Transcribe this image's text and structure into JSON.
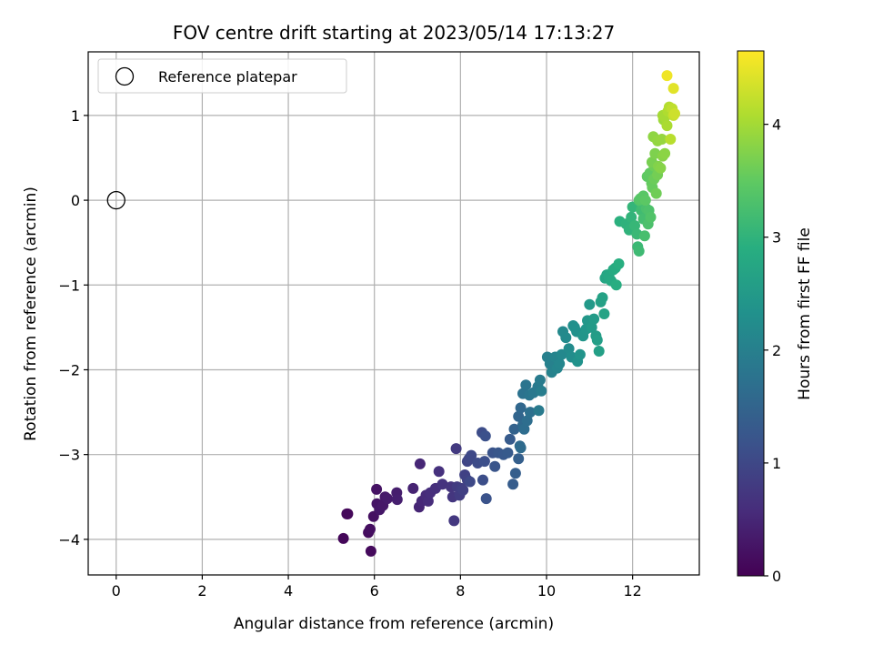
{
  "chart_data": {
    "type": "scatter",
    "title": "FOV centre drift starting at 2023/05/14 17:13:27",
    "xlabel": "Angular distance from reference (arcmin)",
    "ylabel": "Rotation from reference (arcmin)",
    "xlim": [
      -0.65,
      13.55
    ],
    "ylim": [
      -4.42,
      1.75
    ],
    "xticks": [
      0,
      2,
      4,
      6,
      8,
      10,
      12
    ],
    "yticks": [
      -4,
      -3,
      -2,
      -1,
      0,
      1
    ],
    "grid": true,
    "legend": {
      "placement": "top-left",
      "entries": [
        "Reference platepar"
      ]
    },
    "reference_point": {
      "x": 0,
      "y": 0,
      "marker": "open-circle"
    },
    "colorbar": {
      "label": "Hours from first FF file",
      "range": [
        0,
        4.65
      ],
      "ticks": [
        0,
        1,
        2,
        3,
        4
      ],
      "colormap": "viridis"
    },
    "points": [
      [
        5.38,
        -3.7,
        0.05
      ],
      [
        5.28,
        -3.99,
        0.08
      ],
      [
        5.36,
        -3.7,
        0.1
      ],
      [
        5.92,
        -4.14,
        0.12
      ],
      [
        5.86,
        -3.92,
        0.15
      ],
      [
        5.9,
        -3.88,
        0.18
      ],
      [
        5.98,
        -3.73,
        0.2
      ],
      [
        6.05,
        -3.41,
        0.22
      ],
      [
        6.06,
        -3.58,
        0.25
      ],
      [
        6.12,
        -3.65,
        0.28
      ],
      [
        6.2,
        -3.6,
        0.3
      ],
      [
        6.25,
        -3.5,
        0.32
      ],
      [
        6.3,
        -3.52,
        0.35
      ],
      [
        6.52,
        -3.45,
        0.38
      ],
      [
        6.53,
        -3.53,
        0.4
      ],
      [
        6.9,
        -3.4,
        0.45
      ],
      [
        7.04,
        -3.62,
        0.48
      ],
      [
        7.06,
        -3.11,
        0.5
      ],
      [
        7.1,
        -3.55,
        0.52
      ],
      [
        7.2,
        -3.48,
        0.55
      ],
      [
        7.25,
        -3.55,
        0.58
      ],
      [
        7.3,
        -3.45,
        0.6
      ],
      [
        7.42,
        -3.4,
        0.62
      ],
      [
        7.5,
        -3.2,
        0.65
      ],
      [
        7.58,
        -3.35,
        0.68
      ],
      [
        7.78,
        -3.38,
        0.7
      ],
      [
        7.82,
        -3.5,
        0.72
      ],
      [
        7.85,
        -3.78,
        0.75
      ],
      [
        7.9,
        -2.93,
        0.78
      ],
      [
        7.92,
        -3.38,
        0.8
      ],
      [
        7.98,
        -3.48,
        0.82
      ],
      [
        8.02,
        -3.4,
        0.85
      ],
      [
        8.06,
        -3.42,
        0.88
      ],
      [
        8.1,
        -3.24,
        0.9
      ],
      [
        8.16,
        -3.3,
        0.92
      ],
      [
        8.16,
        -3.08,
        0.95
      ],
      [
        8.2,
        -3.05,
        0.98
      ],
      [
        8.25,
        -3.01,
        1.0
      ],
      [
        8.22,
        -3.32,
        1.02
      ],
      [
        8.4,
        -3.1,
        1.05
      ],
      [
        8.5,
        -2.74,
        1.08
      ],
      [
        8.52,
        -3.3,
        1.1
      ],
      [
        8.56,
        -3.08,
        1.12
      ],
      [
        8.58,
        -2.78,
        1.15
      ],
      [
        8.6,
        -3.52,
        1.18
      ],
      [
        8.75,
        -2.98,
        1.2
      ],
      [
        8.8,
        -3.14,
        1.22
      ],
      [
        8.88,
        -2.98,
        1.25
      ],
      [
        9.0,
        -3.0,
        1.28
      ],
      [
        9.1,
        -2.98,
        1.3
      ],
      [
        9.15,
        -2.82,
        1.32
      ],
      [
        9.22,
        -3.35,
        1.35
      ],
      [
        9.28,
        -3.22,
        1.38
      ],
      [
        9.35,
        -3.05,
        1.4
      ],
      [
        9.25,
        -2.7,
        1.45
      ],
      [
        9.35,
        -2.55,
        1.5
      ],
      [
        9.4,
        -2.45,
        1.55
      ],
      [
        9.45,
        -2.65,
        1.58
      ],
      [
        9.38,
        -2.9,
        1.6
      ],
      [
        9.4,
        -2.92,
        1.62
      ],
      [
        9.48,
        -2.7,
        1.65
      ],
      [
        9.55,
        -2.6,
        1.68
      ],
      [
        9.62,
        -2.5,
        1.7
      ],
      [
        9.45,
        -2.28,
        1.75
      ],
      [
        9.52,
        -2.18,
        1.78
      ],
      [
        9.6,
        -2.3,
        1.8
      ],
      [
        9.7,
        -2.27,
        1.85
      ],
      [
        9.8,
        -2.2,
        1.88
      ],
      [
        9.82,
        -2.48,
        1.9
      ],
      [
        9.85,
        -2.12,
        1.92
      ],
      [
        9.88,
        -2.25,
        1.95
      ],
      [
        10.02,
        -1.85,
        2.0
      ],
      [
        10.08,
        -1.93,
        2.02
      ],
      [
        10.12,
        -2.03,
        2.05
      ],
      [
        10.2,
        -1.85,
        2.08
      ],
      [
        10.25,
        -1.98,
        2.1
      ],
      [
        10.3,
        -1.93,
        2.12
      ],
      [
        10.35,
        -1.82,
        2.15
      ],
      [
        10.38,
        -1.55,
        2.18
      ],
      [
        10.45,
        -1.62,
        2.2
      ],
      [
        10.52,
        -1.75,
        2.22
      ],
      [
        10.58,
        -1.85,
        2.25
      ],
      [
        10.62,
        -1.48,
        2.28
      ],
      [
        10.65,
        -1.5,
        2.3
      ],
      [
        10.7,
        -1.55,
        2.32
      ],
      [
        10.72,
        -1.9,
        2.35
      ],
      [
        10.78,
        -1.82,
        2.38
      ],
      [
        10.85,
        -1.6,
        2.4
      ],
      [
        10.92,
        -1.52,
        2.42
      ],
      [
        10.95,
        -1.42,
        2.45
      ],
      [
        11.0,
        -1.23,
        2.48
      ],
      [
        11.05,
        -1.5,
        2.5
      ],
      [
        11.1,
        -1.4,
        2.52
      ],
      [
        11.15,
        -1.6,
        2.55
      ],
      [
        11.18,
        -1.65,
        2.58
      ],
      [
        11.22,
        -1.78,
        2.6
      ],
      [
        11.26,
        -1.2,
        2.62
      ],
      [
        11.3,
        -1.15,
        2.65
      ],
      [
        11.34,
        -1.34,
        2.68
      ],
      [
        11.36,
        -0.92,
        2.72
      ],
      [
        11.4,
        -0.88,
        2.75
      ],
      [
        11.45,
        -0.9,
        2.78
      ],
      [
        11.5,
        -0.95,
        2.8
      ],
      [
        11.55,
        -0.82,
        2.82
      ],
      [
        11.6,
        -0.8,
        2.85
      ],
      [
        11.62,
        -1.0,
        2.88
      ],
      [
        11.68,
        -0.75,
        2.9
      ],
      [
        11.7,
        -0.25,
        2.95
      ],
      [
        11.85,
        -0.28,
        2.98
      ],
      [
        11.92,
        -0.35,
        3.0
      ],
      [
        11.97,
        -0.2,
        3.02
      ],
      [
        12.0,
        -0.08,
        3.05
      ],
      [
        12.05,
        -0.3,
        3.08
      ],
      [
        12.1,
        -0.4,
        3.1
      ],
      [
        12.12,
        -0.55,
        3.12
      ],
      [
        12.15,
        -0.6,
        3.15
      ],
      [
        12.2,
        -0.12,
        3.18
      ],
      [
        12.22,
        -0.05,
        3.2
      ],
      [
        12.25,
        -0.22,
        3.22
      ],
      [
        12.28,
        -0.42,
        3.25
      ],
      [
        12.32,
        -0.1,
        3.28
      ],
      [
        12.36,
        -0.28,
        3.3
      ],
      [
        12.38,
        -0.12,
        3.32
      ],
      [
        12.42,
        -0.2,
        3.35
      ],
      [
        12.15,
        0.0,
        3.38
      ],
      [
        12.18,
        0.02,
        3.4
      ],
      [
        12.25,
        0.05,
        3.42
      ],
      [
        12.3,
        0.0,
        3.45
      ],
      [
        12.34,
        0.28,
        3.48
      ],
      [
        12.4,
        0.32,
        3.5
      ],
      [
        12.44,
        0.2,
        3.52
      ],
      [
        12.46,
        0.15,
        3.55
      ],
      [
        12.5,
        0.25,
        3.58
      ],
      [
        12.5,
        0.4,
        3.6
      ],
      [
        12.55,
        0.08,
        3.62
      ],
      [
        12.58,
        0.3,
        3.65
      ],
      [
        12.45,
        0.45,
        3.68
      ],
      [
        12.52,
        0.55,
        3.72
      ],
      [
        12.6,
        0.4,
        3.75
      ],
      [
        12.65,
        0.38,
        3.78
      ],
      [
        12.7,
        0.52,
        3.8
      ],
      [
        12.75,
        0.55,
        3.82
      ],
      [
        12.48,
        0.75,
        3.85
      ],
      [
        12.58,
        0.7,
        3.88
      ],
      [
        12.68,
        0.72,
        3.9
      ],
      [
        12.72,
        0.95,
        3.95
      ],
      [
        12.7,
        1.0,
        4.0
      ],
      [
        12.75,
        0.98,
        4.02
      ],
      [
        12.8,
        0.88,
        4.05
      ],
      [
        12.82,
        1.05,
        4.08
      ],
      [
        12.85,
        1.1,
        4.12
      ],
      [
        12.88,
        0.72,
        4.15
      ],
      [
        12.92,
        1.08,
        4.2
      ],
      [
        12.95,
        1.0,
        4.25
      ],
      [
        12.98,
        1.02,
        4.3
      ],
      [
        12.95,
        1.32,
        4.45
      ],
      [
        12.8,
        1.47,
        4.55
      ]
    ]
  }
}
